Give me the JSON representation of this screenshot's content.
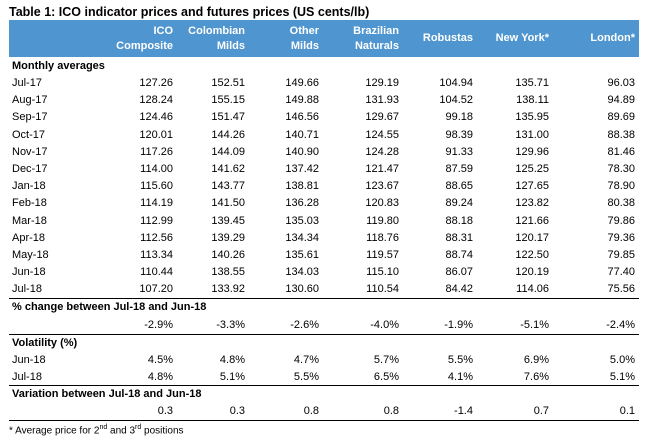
{
  "table": {
    "title": "Table 1:  ICO indicator prices and futures prices (US cents/lb)",
    "columns": [
      "ICO\nComposite",
      "Colombian\nMilds",
      "Other\nMilds",
      "Brazilian\nNaturals",
      "Robustas",
      "New York*",
      "London*"
    ],
    "monthly_label": "Monthly averages",
    "monthly": [
      {
        "label": "Jul-17",
        "values": [
          "127.26",
          "152.51",
          "149.66",
          "129.19",
          "104.94",
          "135.71",
          "96.03"
        ]
      },
      {
        "label": "Aug-17",
        "values": [
          "128.24",
          "155.15",
          "149.88",
          "131.93",
          "104.52",
          "138.11",
          "94.89"
        ]
      },
      {
        "label": "Sep-17",
        "values": [
          "124.46",
          "151.47",
          "146.56",
          "129.67",
          "99.18",
          "135.95",
          "89.69"
        ]
      },
      {
        "label": "Oct-17",
        "values": [
          "120.01",
          "144.26",
          "140.71",
          "124.55",
          "98.39",
          "131.00",
          "88.38"
        ]
      },
      {
        "label": "Nov-17",
        "values": [
          "117.26",
          "144.09",
          "140.90",
          "124.28",
          "91.33",
          "129.96",
          "81.46"
        ]
      },
      {
        "label": "Dec-17",
        "values": [
          "114.00",
          "141.62",
          "137.42",
          "121.47",
          "87.59",
          "125.25",
          "78.30"
        ]
      },
      {
        "label": "Jan-18",
        "values": [
          "115.60",
          "143.77",
          "138.81",
          "123.67",
          "88.65",
          "127.65",
          "78.90"
        ]
      },
      {
        "label": "Feb-18",
        "values": [
          "114.19",
          "141.50",
          "136.28",
          "120.83",
          "89.24",
          "123.82",
          "80.38"
        ]
      },
      {
        "label": "Mar-18",
        "values": [
          "112.99",
          "139.45",
          "135.03",
          "119.80",
          "88.18",
          "121.66",
          "79.86"
        ]
      },
      {
        "label": "Apr-18",
        "values": [
          "112.56",
          "139.29",
          "134.34",
          "118.76",
          "88.31",
          "120.17",
          "79.36"
        ]
      },
      {
        "label": "May-18",
        "values": [
          "113.34",
          "140.26",
          "135.61",
          "119.57",
          "88.74",
          "122.50",
          "79.85"
        ]
      },
      {
        "label": "Jun-18",
        "values": [
          "110.44",
          "138.55",
          "134.03",
          "115.10",
          "86.07",
          "120.19",
          "77.40"
        ]
      },
      {
        "label": "Jul-18",
        "values": [
          "107.20",
          "133.92",
          "130.60",
          "110.54",
          "84.42",
          "114.06",
          "75.56"
        ]
      }
    ],
    "pct_label": "% change between Jul-18 and Jun-18",
    "pct_values": [
      "-2.9%",
      "-3.3%",
      "-2.6%",
      "-4.0%",
      "-1.9%",
      "-5.1%",
      "-2.4%"
    ],
    "vol_label": "Volatility (%)",
    "volatility": [
      {
        "label": "Jun-18",
        "values": [
          "4.5%",
          "4.8%",
          "4.7%",
          "5.7%",
          "5.5%",
          "6.9%",
          "5.0%"
        ]
      },
      {
        "label": "Jul-18",
        "values": [
          "4.8%",
          "5.1%",
          "5.5%",
          "6.5%",
          "4.1%",
          "7.6%",
          "5.1%"
        ]
      }
    ],
    "var_label": "Variation between Jul-18 and Jun-18",
    "var_values": [
      "0.3",
      "0.3",
      "0.8",
      "0.8",
      "-1.4",
      "0.7",
      "0.1"
    ],
    "note_prefix": "* Average price for 2",
    "note_sup1": "nd",
    "note_mid": " and 3",
    "note_sup2": "rd",
    "note_suffix": " positions"
  }
}
